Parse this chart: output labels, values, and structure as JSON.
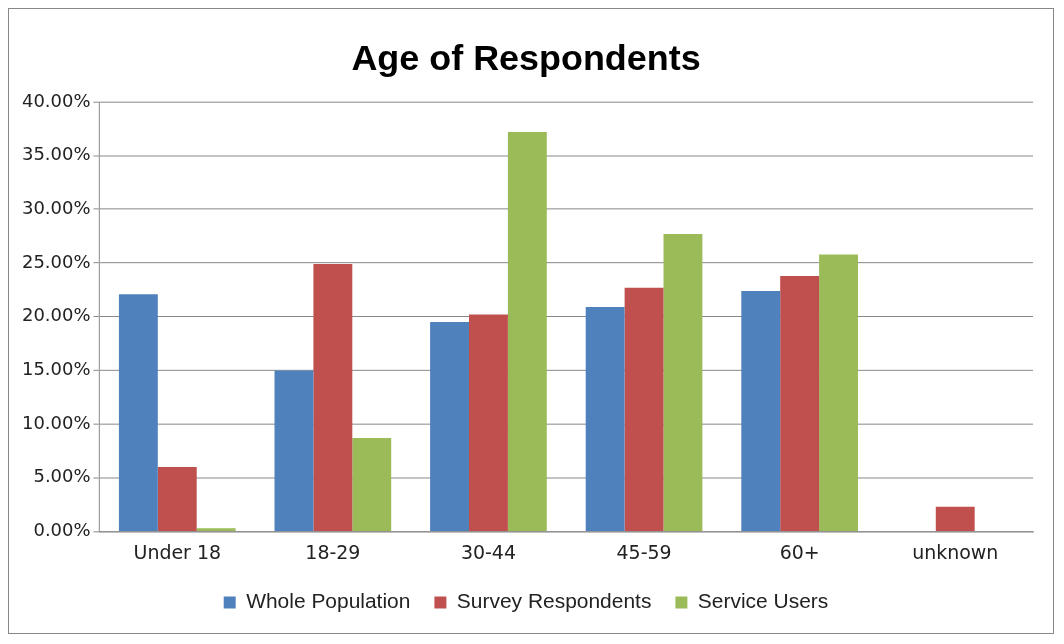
{
  "chart_data": {
    "type": "bar",
    "title": "Age of Respondents",
    "categories": [
      "Under 18",
      "18-29",
      "30-44",
      "45-59",
      "60+",
      "unknown"
    ],
    "series": [
      {
        "name": "Whole Population",
        "color": "#4f81bd",
        "values": [
          22.1,
          15.0,
          19.5,
          20.9,
          22.4,
          0
        ]
      },
      {
        "name": "Survey Respondents",
        "color": "#c0504d",
        "values": [
          6.0,
          24.9,
          20.2,
          22.7,
          23.8,
          2.3
        ]
      },
      {
        "name": "Service Users",
        "color": "#9bbb59",
        "values": [
          0.3,
          8.7,
          37.2,
          27.7,
          25.8,
          0
        ]
      }
    ],
    "ylim": [
      0,
      40
    ],
    "yticks": [
      {
        "value": 0,
        "label": "0.00%"
      },
      {
        "value": 5,
        "label": "5.00%"
      },
      {
        "value": 10,
        "label": "10.00%"
      },
      {
        "value": 15,
        "label": "15.00%"
      },
      {
        "value": 20,
        "label": "20.00%"
      },
      {
        "value": 25,
        "label": "25.00%"
      },
      {
        "value": 30,
        "label": "30.00%"
      },
      {
        "value": 35,
        "label": "35.00%"
      },
      {
        "value": 40,
        "label": "40.00%"
      }
    ],
    "grid": "y",
    "legend": "bottom"
  }
}
